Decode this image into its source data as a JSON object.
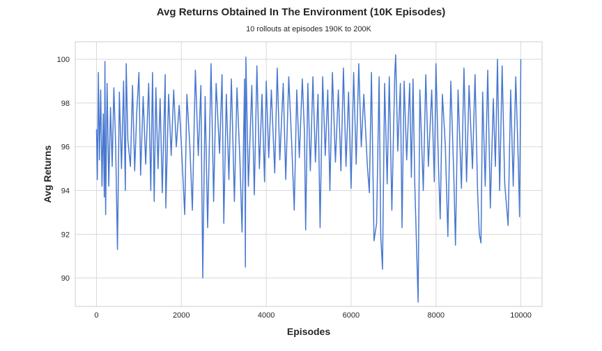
{
  "chart_data": {
    "type": "line",
    "title": "Avg Returns Obtained In The Environment (10K Episodes)",
    "subtitle": "10 rollouts at episodes 190K to 200K",
    "xlabel": "Episodes",
    "ylabel": "Avg Returns",
    "xlim": [
      -500,
      10500
    ],
    "ylim": [
      88.7,
      100.8
    ],
    "xticks": [
      0,
      2000,
      4000,
      6000,
      8000,
      10000
    ],
    "yticks": [
      90,
      92,
      94,
      96,
      98,
      100
    ],
    "grid": true,
    "colors": {
      "line": "#4878d0"
    },
    "series": [
      {
        "points": [
          [
            0,
            96.8
          ],
          [
            20,
            94.5
          ],
          [
            45,
            99.4
          ],
          [
            70,
            95.4
          ],
          [
            100,
            98.6
          ],
          [
            130,
            94.2
          ],
          [
            160,
            97.5
          ],
          [
            185,
            93.7
          ],
          [
            200,
            99.9
          ],
          [
            215,
            92.9
          ],
          [
            250,
            98.9
          ],
          [
            290,
            94.2
          ],
          [
            330,
            97.8
          ],
          [
            370,
            95.1
          ],
          [
            410,
            98.7
          ],
          [
            450,
            96.2
          ],
          [
            495,
            91.3
          ],
          [
            540,
            98.5
          ],
          [
            590,
            95.0
          ],
          [
            640,
            99.0
          ],
          [
            680,
            94.0
          ],
          [
            700,
            99.8
          ],
          [
            740,
            96.3
          ],
          [
            800,
            95.1
          ],
          [
            850,
            98.8
          ],
          [
            900,
            94.9
          ],
          [
            950,
            97.6
          ],
          [
            1000,
            99.4
          ],
          [
            1040,
            94.7
          ],
          [
            1100,
            98.3
          ],
          [
            1160,
            95.2
          ],
          [
            1230,
            98.9
          ],
          [
            1280,
            94.0
          ],
          [
            1320,
            99.4
          ],
          [
            1360,
            93.5
          ],
          [
            1400,
            98.7
          ],
          [
            1450,
            95.0
          ],
          [
            1500,
            98.2
          ],
          [
            1550,
            93.9
          ],
          [
            1620,
            99.3
          ],
          [
            1635,
            93.2
          ],
          [
            1700,
            98.4
          ],
          [
            1760,
            95.6
          ],
          [
            1820,
            98.6
          ],
          [
            1880,
            96.0
          ],
          [
            1950,
            97.9
          ],
          [
            2000,
            96.1
          ],
          [
            2080,
            92.9
          ],
          [
            2130,
            98.4
          ],
          [
            2200,
            96.0
          ],
          [
            2260,
            93.1
          ],
          [
            2330,
            99.5
          ],
          [
            2400,
            95.6
          ],
          [
            2460,
            98.8
          ],
          [
            2505,
            90.0
          ],
          [
            2560,
            98.3
          ],
          [
            2620,
            92.3
          ],
          [
            2700,
            99.8
          ],
          [
            2760,
            93.5
          ],
          [
            2820,
            98.9
          ],
          [
            2900,
            95.7
          ],
          [
            2960,
            99.3
          ],
          [
            3000,
            92.5
          ],
          [
            3060,
            98.4
          ],
          [
            3120,
            94.5
          ],
          [
            3180,
            99.1
          ],
          [
            3250,
            93.5
          ],
          [
            3310,
            98.7
          ],
          [
            3380,
            95.4
          ],
          [
            3430,
            92.1
          ],
          [
            3490,
            99.1
          ],
          [
            3510,
            90.5
          ],
          [
            3520,
            100.1
          ],
          [
            3580,
            94.2
          ],
          [
            3660,
            98.8
          ],
          [
            3720,
            93.8
          ],
          [
            3780,
            99.7
          ],
          [
            3840,
            95.0
          ],
          [
            3900,
            98.4
          ],
          [
            3960,
            94.4
          ],
          [
            4000,
            99.0
          ],
          [
            4060,
            95.5
          ],
          [
            4120,
            98.6
          ],
          [
            4200,
            94.8
          ],
          [
            4260,
            99.6
          ],
          [
            4320,
            95.4
          ],
          [
            4400,
            98.9
          ],
          [
            4460,
            94.5
          ],
          [
            4530,
            99.2
          ],
          [
            4600,
            96.2
          ],
          [
            4660,
            93.1
          ],
          [
            4720,
            98.6
          ],
          [
            4780,
            95.5
          ],
          [
            4850,
            99.1
          ],
          [
            4900,
            96.7
          ],
          [
            4930,
            92.2
          ],
          [
            4980,
            98.9
          ],
          [
            5040,
            94.9
          ],
          [
            5100,
            99.2
          ],
          [
            5160,
            95.3
          ],
          [
            5220,
            98.4
          ],
          [
            5270,
            92.3
          ],
          [
            5330,
            99.2
          ],
          [
            5390,
            95.6
          ],
          [
            5450,
            98.6
          ],
          [
            5500,
            94.0
          ],
          [
            5560,
            99.4
          ],
          [
            5630,
            95.3
          ],
          [
            5700,
            98.6
          ],
          [
            5760,
            94.9
          ],
          [
            5820,
            99.6
          ],
          [
            5880,
            95.1
          ],
          [
            5940,
            98.5
          ],
          [
            6000,
            94.1
          ],
          [
            6060,
            99.4
          ],
          [
            6120,
            95.2
          ],
          [
            6180,
            99.8
          ],
          [
            6240,
            96.0
          ],
          [
            6300,
            98.4
          ],
          [
            6380,
            95.2
          ],
          [
            6430,
            93.9
          ],
          [
            6480,
            99.4
          ],
          [
            6540,
            91.7
          ],
          [
            6600,
            92.5
          ],
          [
            6660,
            99.2
          ],
          [
            6700,
            91.9
          ],
          [
            6740,
            90.4
          ],
          [
            6790,
            98.9
          ],
          [
            6850,
            94.3
          ],
          [
            6900,
            99.2
          ],
          [
            6960,
            93.1
          ],
          [
            7030,
            99.3
          ],
          [
            7050,
            100.2
          ],
          [
            7100,
            95.8
          ],
          [
            7160,
            98.9
          ],
          [
            7200,
            92.3
          ],
          [
            7250,
            99.0
          ],
          [
            7310,
            95.4
          ],
          [
            7380,
            98.9
          ],
          [
            7420,
            94.6
          ],
          [
            7460,
            99.1
          ],
          [
            7500,
            94.3
          ],
          [
            7580,
            88.9
          ],
          [
            7620,
            98.6
          ],
          [
            7700,
            94.0
          ],
          [
            7760,
            99.3
          ],
          [
            7820,
            95.1
          ],
          [
            7900,
            98.6
          ],
          [
            7960,
            94.4
          ],
          [
            8000,
            99.8
          ],
          [
            8060,
            95.0
          ],
          [
            8100,
            92.7
          ],
          [
            8150,
            98.4
          ],
          [
            8220,
            96.1
          ],
          [
            8280,
            91.9
          ],
          [
            8350,
            99.0
          ],
          [
            8420,
            94.7
          ],
          [
            8460,
            91.5
          ],
          [
            8520,
            98.6
          ],
          [
            8600,
            94.1
          ],
          [
            8660,
            99.6
          ],
          [
            8720,
            94.4
          ],
          [
            8780,
            98.8
          ],
          [
            8860,
            95.0
          ],
          [
            8920,
            99.3
          ],
          [
            8980,
            94.0
          ],
          [
            9020,
            92.0
          ],
          [
            9060,
            91.6
          ],
          [
            9100,
            98.5
          ],
          [
            9160,
            94.2
          ],
          [
            9220,
            99.5
          ],
          [
            9280,
            93.2
          ],
          [
            9350,
            98.2
          ],
          [
            9400,
            95.1
          ],
          [
            9450,
            100.0
          ],
          [
            9500,
            94.0
          ],
          [
            9560,
            99.7
          ],
          [
            9620,
            94.3
          ],
          [
            9700,
            92.4
          ],
          [
            9760,
            98.6
          ],
          [
            9820,
            94.2
          ],
          [
            9880,
            99.2
          ],
          [
            9940,
            95.3
          ],
          [
            9970,
            92.8
          ],
          [
            10000,
            100.0
          ]
        ]
      }
    ]
  }
}
